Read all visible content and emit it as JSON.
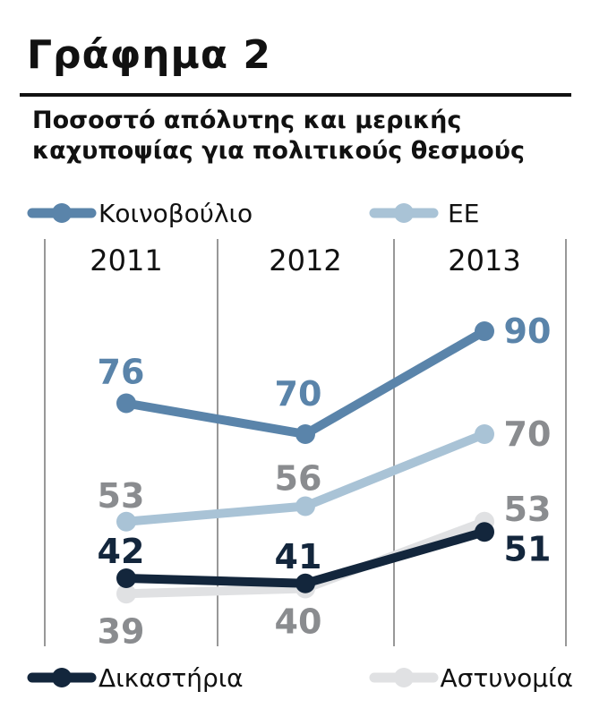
{
  "title": "Γράφημα 2",
  "subtitle_lines": [
    "Ποσοστό απόλυτης και μερικής",
    "καχυποψίας για πολιτικούς θεσμούς"
  ],
  "chart_data": {
    "type": "line",
    "title": "Γράφημα 2",
    "subtitle": "Ποσοστό απόλυτης και μερικής καχυποψίας για πολιτικούς θεσμούς",
    "categories": [
      "2011",
      "2012",
      "2013"
    ],
    "series": [
      {
        "name": "Κοινοβούλιο",
        "values": [
          76,
          70,
          90
        ],
        "color": "#5a84aa",
        "label_color": "#5a84aa"
      },
      {
        "name": "ΕΕ",
        "values": [
          53,
          56,
          70
        ],
        "color": "#a9c3d6",
        "label_color": "#8a8c8f"
      },
      {
        "name": "Αστυνομία",
        "values": [
          39,
          40,
          53
        ],
        "color": "#e0e1e3",
        "label_color": "#8a8c8f"
      },
      {
        "name": "Δικαστήρια",
        "values": [
          42,
          41,
          51
        ],
        "color": "#13263c",
        "label_color": "#13263c"
      }
    ],
    "legend_placement": "top and bottom",
    "grid": "vertical separators",
    "xlabel": "",
    "ylabel": ""
  }
}
